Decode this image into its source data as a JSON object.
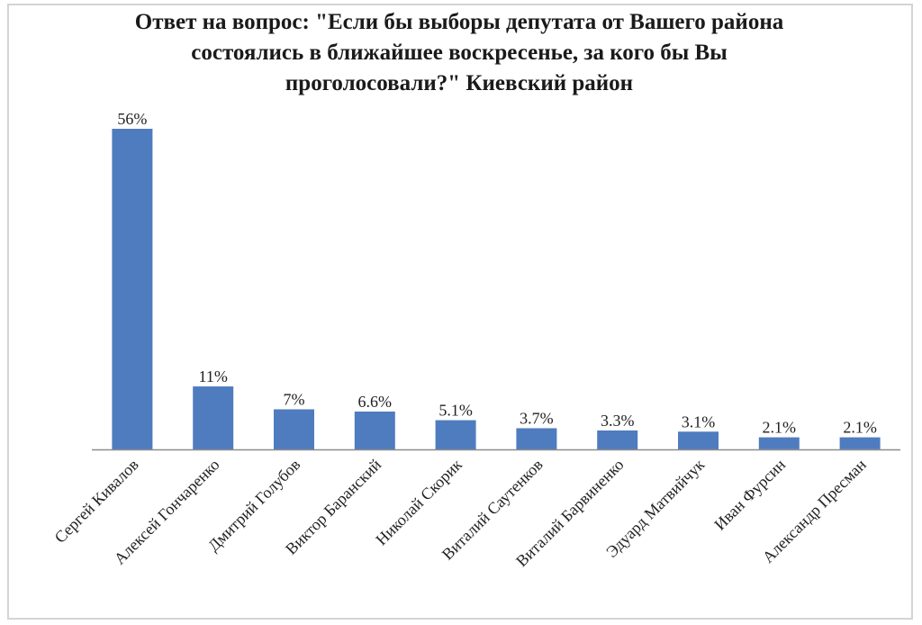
{
  "chart_data": {
    "type": "bar",
    "title_lines": [
      "Ответ на вопрос: \"Если бы выборы депутата от Вашего района",
      "состоялись в ближайшее воскресенье, за кого бы Вы",
      "проголосовали?\" Киевский район"
    ],
    "categories": [
      "Сергей Кивалов",
      "Алексей Гончаренко",
      "Дмитрий Голубов",
      "Виктор Баранский",
      "Николай Скорик",
      "Виталий Саутенков",
      "Виталий Барвиненко",
      "Эдуард Матвийчук",
      "Иван Фурсин",
      "Александр Пресман"
    ],
    "values": [
      56,
      11,
      7,
      6.6,
      5.1,
      3.7,
      3.3,
      3.1,
      2.1,
      2.1
    ],
    "data_labels": [
      "56%",
      "11%",
      "7%",
      "6.6%",
      "5.1%",
      "3.7%",
      "3.3%",
      "3.1%",
      "2.1%",
      "2.1%"
    ],
    "ylim": [
      0,
      56
    ],
    "grid": false,
    "legend": "none",
    "bar_color": "#4f7cbf"
  }
}
